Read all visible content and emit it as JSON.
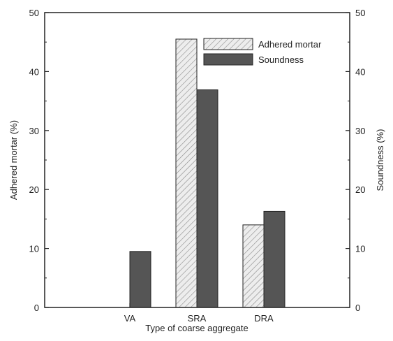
{
  "chart_data": {
    "type": "bar",
    "title": "",
    "xlabel": "Type of coarse aggregate",
    "ylabel_left": "Adhered mortar (%)",
    "ylabel_right": "Soundness (%)",
    "categories": [
      "VA",
      "SRA",
      "DRA"
    ],
    "ylim": [
      0,
      50
    ],
    "yticks": [
      "0",
      "10",
      "20",
      "30",
      "40",
      "50"
    ],
    "series": [
      {
        "name": "Adhered mortar",
        "values": [
          0,
          45.5,
          14
        ],
        "axis": "left",
        "style": "hatched",
        "color": "#e6e6e6"
      },
      {
        "name": "Soundness",
        "values": [
          9.5,
          36.9,
          16.3
        ],
        "axis": "right",
        "style": "solid",
        "color": "#555555"
      }
    ],
    "legend_position": "top-right",
    "grid": false
  }
}
